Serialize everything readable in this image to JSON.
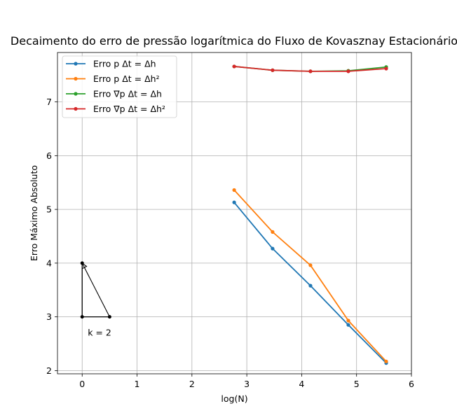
{
  "chart_data": {
    "type": "line",
    "title": "Decaimento do erro de pressão logarítmica do Fluxo de Kovasznay Estacionário",
    "xlabel": "log(N)",
    "ylabel": "Erro Máximo Absoluto",
    "xlim": [
      -0.45,
      6.0
    ],
    "ylim": [
      1.94,
      7.92
    ],
    "xticks": [
      0,
      1,
      2,
      3,
      4,
      5,
      6
    ],
    "yticks": [
      2,
      3,
      4,
      5,
      6,
      7
    ],
    "grid": true,
    "legend_position": "top-left",
    "x": [
      2.77,
      3.47,
      4.16,
      4.85,
      5.54
    ],
    "series": [
      {
        "name": "Erro p Δt = Δh",
        "color": "#1f77b4",
        "values": [
          5.13,
          4.27,
          3.58,
          2.85,
          2.14
        ]
      },
      {
        "name": "Erro p Δt = Δh²",
        "color": "#ff7f0e",
        "values": [
          5.36,
          4.58,
          3.96,
          2.93,
          2.17
        ]
      },
      {
        "name": "Erro ∇p Δt = Δh",
        "color": "#2ca02c",
        "values": [
          7.66,
          7.59,
          7.57,
          7.58,
          7.65
        ]
      },
      {
        "name": "Erro ∇p Δt = Δh²",
        "color": "#d62728",
        "values": [
          7.66,
          7.59,
          7.57,
          7.57,
          7.62
        ]
      }
    ],
    "annotation": {
      "label": "k = 2",
      "triangle": [
        [
          0,
          3
        ],
        [
          0.5,
          3
        ],
        [
          0,
          4
        ]
      ],
      "color": "#000000"
    }
  }
}
